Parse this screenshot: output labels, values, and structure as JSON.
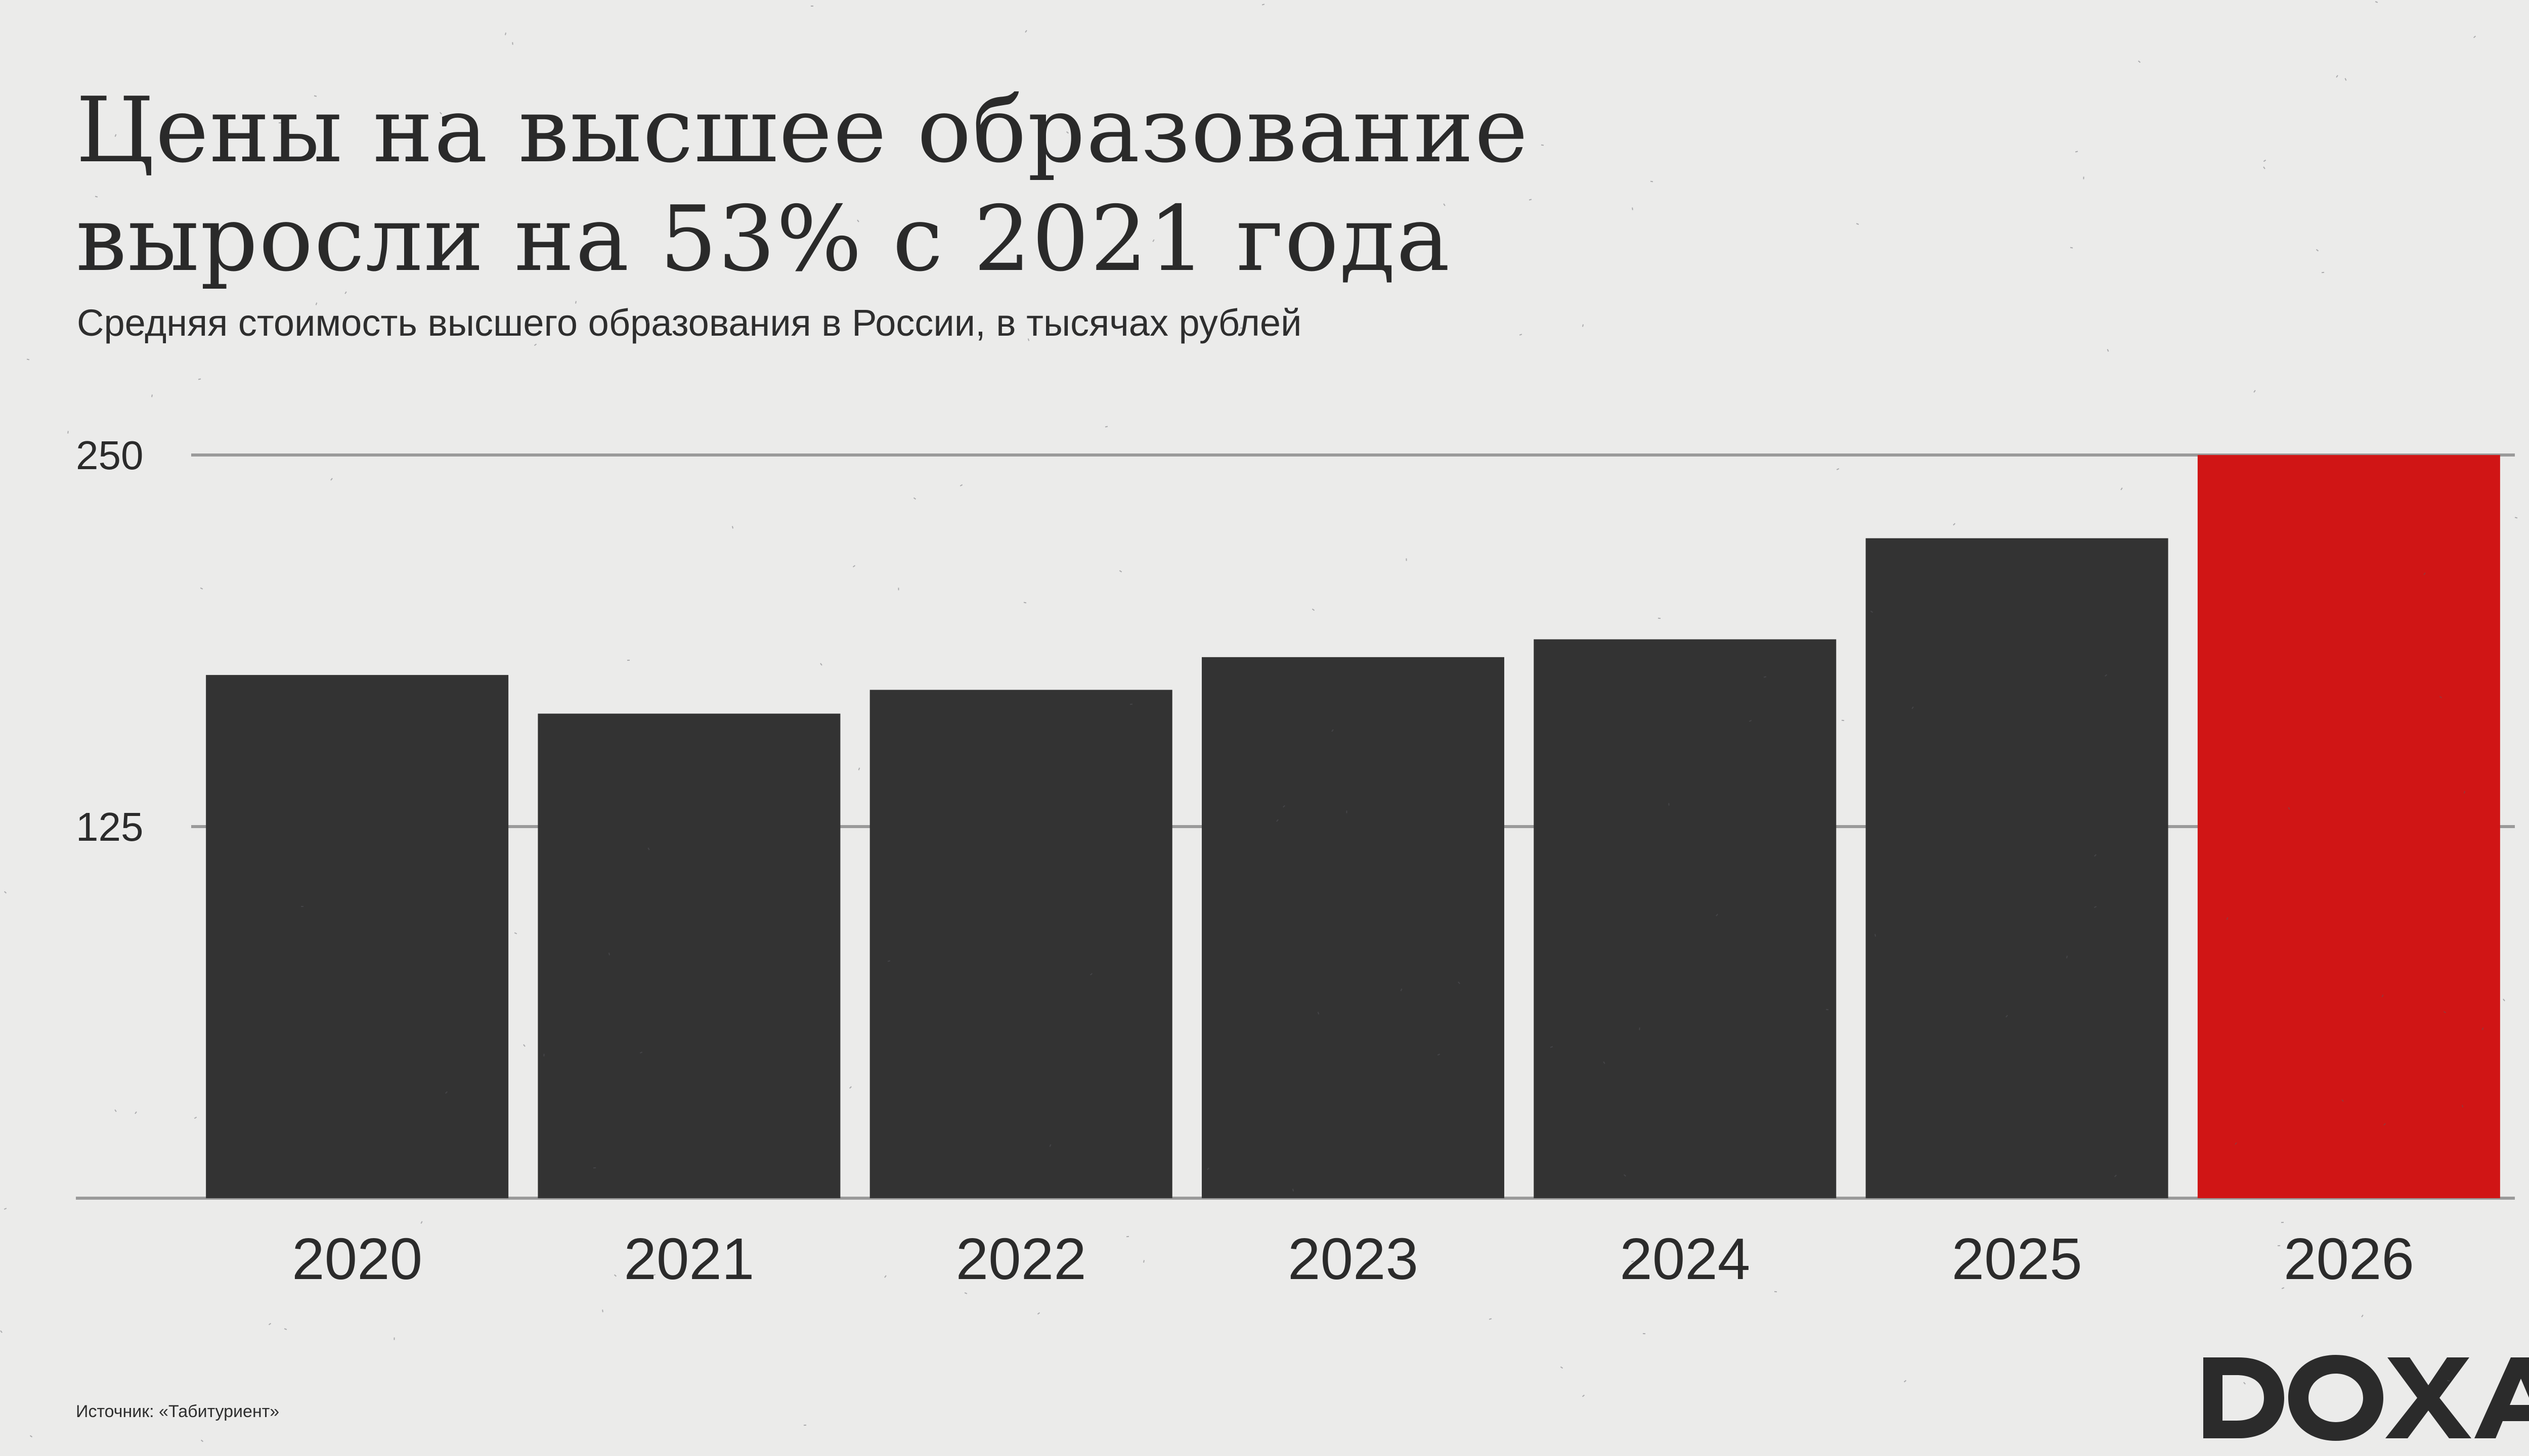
{
  "header": {
    "title_line1": "Цены на высшее образование",
    "title_line2": "выросли на 53% с 2021 года",
    "subtitle": "Средняя стоимость высшего образования в России, в тысячах рублей"
  },
  "footer": {
    "source": "Источник: «Табитуриент»",
    "logo_text": "DOXA"
  },
  "colors": {
    "background": "#ebebea",
    "bar": "#333333",
    "highlight": "#d01515",
    "grid": "#9a9a9a",
    "text": "#2b2b2b"
  },
  "chart_data": {
    "type": "bar",
    "title": "Цены на высшее образование выросли на 53% с 2021 года",
    "subtitle": "Средняя стоимость высшего образования в России, в тысячах рублей",
    "categories": [
      "2020",
      "2021",
      "2022",
      "2023",
      "2024",
      "2025",
      "2026"
    ],
    "values": [
      176,
      163,
      171,
      182,
      188,
      222,
      250
    ],
    "highlight_category": "2026",
    "ylim": [
      0,
      250
    ],
    "yticks": [
      "125",
      "250"
    ],
    "grid": true,
    "legend": "none"
  }
}
